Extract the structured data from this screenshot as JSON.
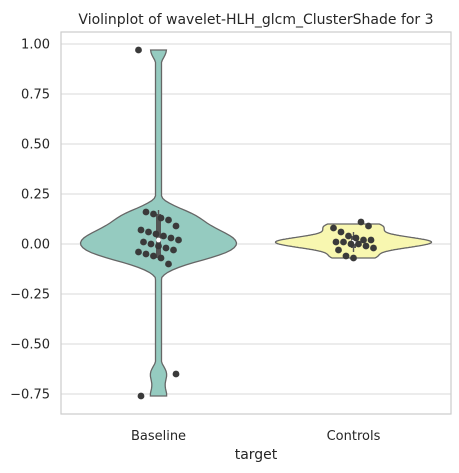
{
  "chart_data": {
    "type": "violin",
    "title": "Violinplot of wavelet-HLH_glcm_ClusterShade for 3",
    "xlabel": "target",
    "ylabel": "",
    "categories": [
      "Baseline",
      "Controls"
    ],
    "ylim": [
      -0.85,
      1.06
    ],
    "yticks": [
      -0.75,
      -0.5,
      -0.25,
      0.0,
      0.25,
      0.5,
      0.75,
      1.0
    ],
    "ytick_labels": [
      "−0.75",
      "−0.50",
      "−0.25",
      "0.00",
      "0.25",
      "0.50",
      "0.75",
      "1.00"
    ],
    "grid": true,
    "series": [
      {
        "category": "Baseline",
        "color": "#95cbc0",
        "range": [
          -0.76,
          0.97
        ],
        "quartiles": [
          -0.07,
          0.02,
          0.15
        ],
        "median": 0.02,
        "points": [
          0.97,
          0.16,
          0.15,
          0.13,
          0.12,
          0.09,
          0.07,
          0.06,
          0.05,
          0.04,
          0.03,
          0.02,
          0.01,
          0.0,
          -0.01,
          -0.02,
          -0.03,
          -0.04,
          -0.05,
          -0.06,
          -0.07,
          -0.1,
          -0.65,
          -0.76
        ]
      },
      {
        "category": "Controls",
        "color": "#f8f7b0",
        "range": [
          -0.07,
          0.1
        ],
        "quartiles": [
          -0.02,
          0.01,
          0.04
        ],
        "median": 0.01,
        "points": [
          0.11,
          0.09,
          0.08,
          0.06,
          0.04,
          0.03,
          0.02,
          0.02,
          0.01,
          0.01,
          0.0,
          0.0,
          -0.01,
          -0.02,
          -0.03,
          -0.06,
          -0.07
        ]
      }
    ]
  }
}
